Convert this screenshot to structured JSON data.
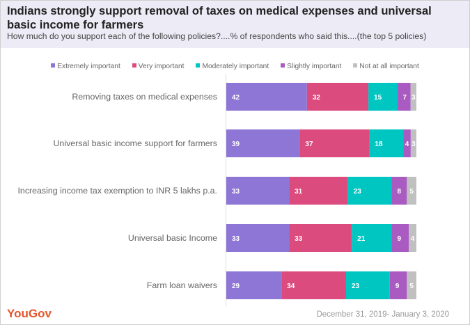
{
  "chart_data": {
    "type": "bar",
    "orientation": "horizontal",
    "stacked": true,
    "title": "Indians strongly support removal of taxes on medical expenses and universal basic income for farmers",
    "subtitle": "How much do you support each of the following policies?....% of respondents who said this....(the top 5 policies)",
    "categories": [
      "Removing taxes on medical expenses",
      "Universal basic income support for farmers",
      "Increasing income tax exemption to INR 5 lakhs p.a.",
      "Universal basic Income",
      "Farm loan waivers"
    ],
    "series": [
      {
        "name": "Extremely important",
        "color": "#8e76d6",
        "values": [
          42,
          39,
          33,
          33,
          29
        ]
      },
      {
        "name": "Very important",
        "color": "#dc4b7e",
        "values": [
          32,
          37,
          31,
          33,
          34
        ]
      },
      {
        "name": "Moderately important",
        "color": "#00c6c2",
        "values": [
          15,
          18,
          23,
          21,
          23
        ]
      },
      {
        "name": "Slightly important",
        "color": "#a95bc1",
        "values": [
          7,
          4,
          8,
          9,
          9
        ]
      },
      {
        "name": "Not at all important",
        "color": "#c0c0c0",
        "values": [
          3,
          3,
          5,
          4,
          5
        ]
      }
    ],
    "legend_position": "top",
    "grid": false
  },
  "footer": {
    "logo": "YouGov",
    "date": "December 31, 2019- January 3, 2020"
  }
}
